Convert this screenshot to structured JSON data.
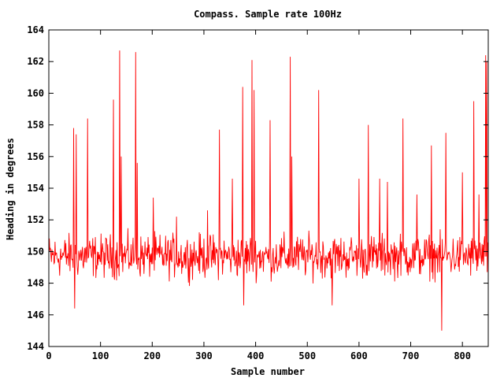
{
  "chart_data": {
    "type": "line",
    "title": "Compass. Sample rate 100Hz",
    "xlabel": "Sample number",
    "ylabel": "Heading in degrees",
    "xlim": [
      0,
      850
    ],
    "ylim": [
      144,
      164
    ],
    "x_ticks": [
      0,
      100,
      200,
      300,
      400,
      500,
      600,
      700,
      800
    ],
    "y_ticks": [
      144,
      146,
      148,
      150,
      152,
      154,
      156,
      158,
      160,
      162,
      164
    ],
    "grid": false,
    "legend": "none",
    "series": [
      {
        "color": "#ff0000",
        "baseline": 149.7,
        "noise_amplitude": 1.2,
        "sample_count": 850,
        "spikes": [
          {
            "x": 48,
            "y": 157.8
          },
          {
            "x": 50,
            "y": 146.4
          },
          {
            "x": 53,
            "y": 157.4
          },
          {
            "x": 75,
            "y": 158.4
          },
          {
            "x": 125,
            "y": 159.6
          },
          {
            "x": 137,
            "y": 162.7
          },
          {
            "x": 140,
            "y": 156.0
          },
          {
            "x": 168,
            "y": 162.6
          },
          {
            "x": 171,
            "y": 155.6
          },
          {
            "x": 202,
            "y": 153.4
          },
          {
            "x": 247,
            "y": 152.2
          },
          {
            "x": 307,
            "y": 152.6
          },
          {
            "x": 330,
            "y": 157.7
          },
          {
            "x": 355,
            "y": 154.6
          },
          {
            "x": 375,
            "y": 160.4
          },
          {
            "x": 377,
            "y": 146.6
          },
          {
            "x": 393,
            "y": 162.1
          },
          {
            "x": 397,
            "y": 160.2
          },
          {
            "x": 428,
            "y": 158.3
          },
          {
            "x": 467,
            "y": 162.3
          },
          {
            "x": 470,
            "y": 156.0
          },
          {
            "x": 522,
            "y": 160.2
          },
          {
            "x": 548,
            "y": 146.6
          },
          {
            "x": 600,
            "y": 154.6
          },
          {
            "x": 618,
            "y": 158.0
          },
          {
            "x": 640,
            "y": 154.6
          },
          {
            "x": 655,
            "y": 154.4
          },
          {
            "x": 685,
            "y": 158.4
          },
          {
            "x": 712,
            "y": 153.6
          },
          {
            "x": 740,
            "y": 156.7
          },
          {
            "x": 760,
            "y": 145.0
          },
          {
            "x": 768,
            "y": 157.5
          },
          {
            "x": 800,
            "y": 155.0
          },
          {
            "x": 822,
            "y": 159.5
          },
          {
            "x": 832,
            "y": 153.6
          },
          {
            "x": 845,
            "y": 162.4
          },
          {
            "x": 847,
            "y": 162.0
          }
        ]
      }
    ]
  }
}
